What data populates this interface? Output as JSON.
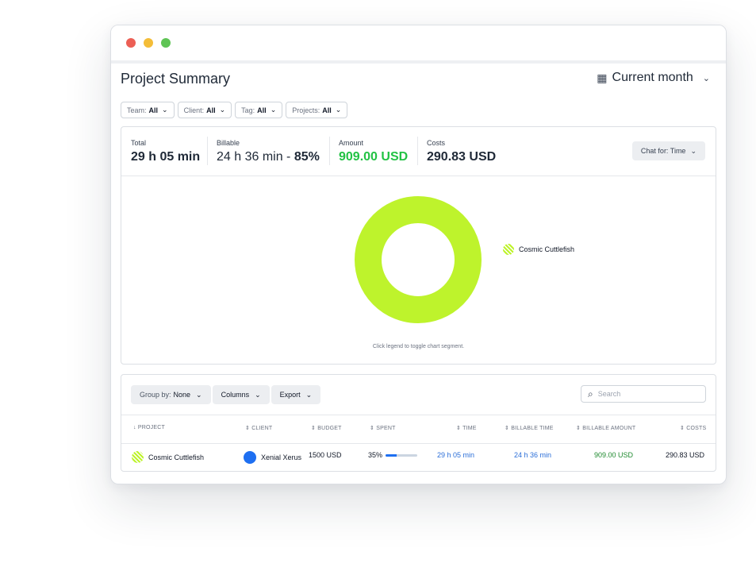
{
  "header": {
    "title": "Project Summary",
    "period_label": "Current month"
  },
  "icons": {
    "calendar": "calendar-icon",
    "chevron": "chevron-down-icon",
    "search": "search-icon",
    "sort": "sort-icon",
    "sort_desc": "sort-desc-icon"
  },
  "filters": [
    {
      "label": "Team:",
      "value": "All"
    },
    {
      "label": "Client:",
      "value": "All"
    },
    {
      "label": "Tag:",
      "value": "All"
    },
    {
      "label": "Projects:",
      "value": "All"
    }
  ],
  "summary": {
    "total_label": "Total",
    "total_value": "29 h 05 min",
    "billable_label": "Billable",
    "billable_value": "24 h 36 min - ",
    "billable_pct": "85%",
    "amount_label": "Amount",
    "amount_value": "909.00 USD",
    "costs_label": "Costs",
    "costs_value": "290.83 USD",
    "chart_for_label": "Chat for: Time"
  },
  "chart": {
    "hint": "Click legend to toggle chart segment.",
    "legend": [
      {
        "name": "Cosmic Cuttlefish"
      }
    ]
  },
  "chart_data": {
    "type": "pie",
    "categories": [
      "Cosmic Cuttlefish"
    ],
    "values": [
      29.08
    ],
    "colors": [
      "#bef32c"
    ]
  },
  "table": {
    "group_by_label": "Group by:",
    "group_by_value": "None",
    "columns_label": "Columns",
    "export_label": "Export",
    "search_placeholder": "Search",
    "headers": [
      "PROJECT",
      "CLIENT",
      "BUDGET",
      "SPENT",
      "TIME",
      "BILLABLE TIME",
      "BILLABLE AMOUNT",
      "COSTS"
    ],
    "rows": [
      {
        "project": "Cosmic Cuttlefish",
        "client": "Xenial Xerus",
        "budget": "1500 USD",
        "spent": "35%",
        "spent_fraction": 0.35,
        "time": "29 h 05 min",
        "billable_time": "24 h 36 min",
        "billable_amount": "909.00 USD",
        "costs": "290.83 USD"
      }
    ]
  },
  "colors": {
    "accent_green": "#22c244",
    "chart_lime": "#bef32c",
    "link_blue": "#2c6fd8",
    "client_blue": "#1e6ff1"
  }
}
